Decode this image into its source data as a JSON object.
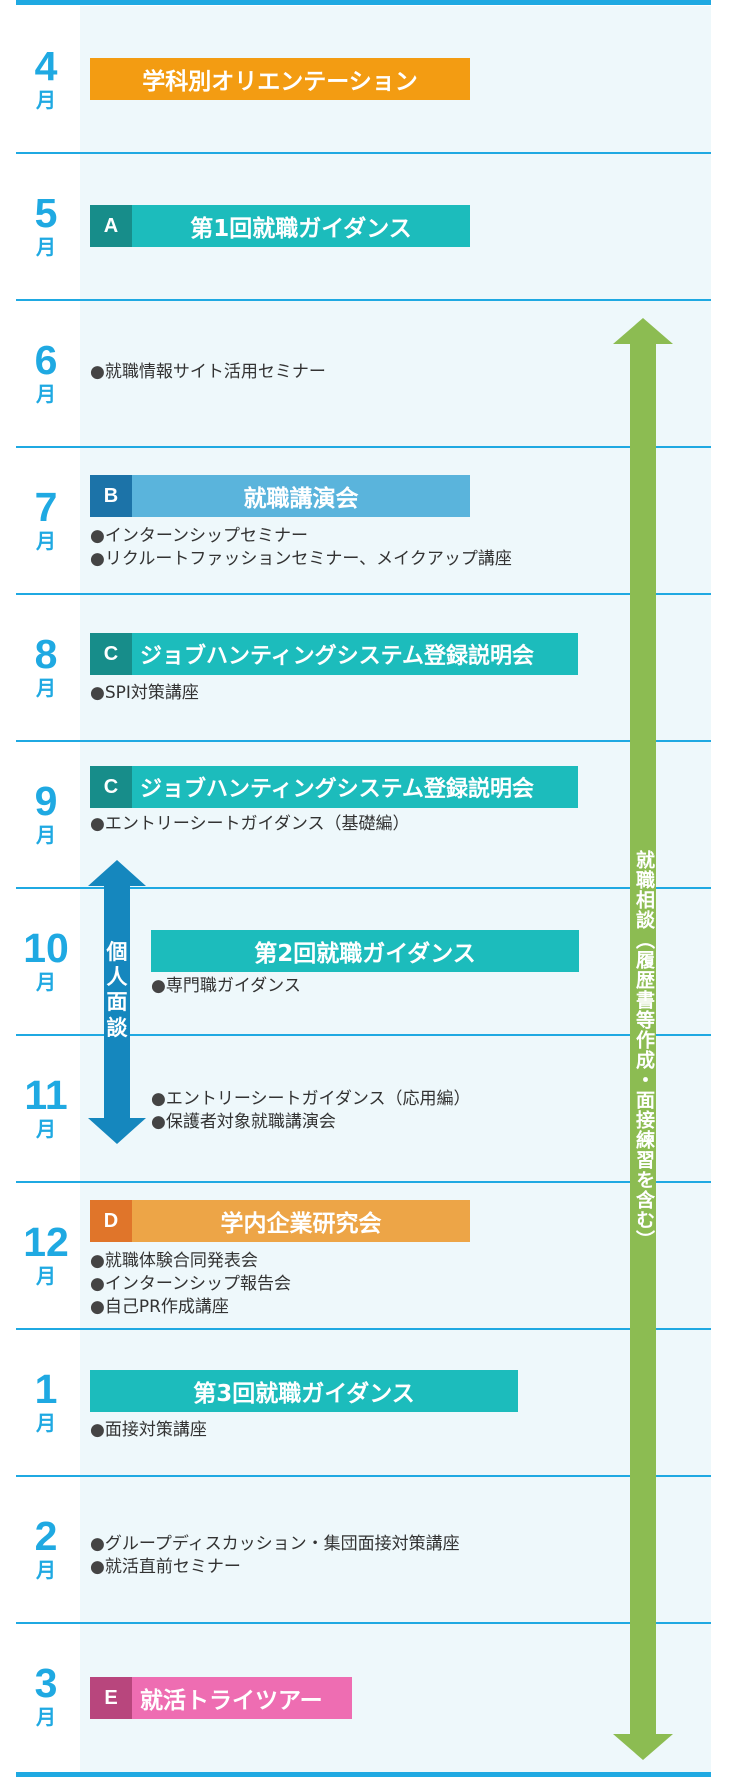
{
  "months": [
    {
      "num": "4",
      "unit": "月"
    },
    {
      "num": "5",
      "unit": "月"
    },
    {
      "num": "6",
      "unit": "月"
    },
    {
      "num": "7",
      "unit": "月"
    },
    {
      "num": "8",
      "unit": "月"
    },
    {
      "num": "9",
      "unit": "月"
    },
    {
      "num": "10",
      "unit": "月"
    },
    {
      "num": "11",
      "unit": "月"
    },
    {
      "num": "12",
      "unit": "月"
    },
    {
      "num": "1",
      "unit": "月"
    },
    {
      "num": "2",
      "unit": "月"
    },
    {
      "num": "3",
      "unit": "月"
    }
  ],
  "bars": {
    "apr": {
      "label": "学科別オリエンテーション"
    },
    "may": {
      "letter": "A",
      "label": "第1回就職ガイダンス"
    },
    "jul": {
      "letter": "B",
      "label": "就職講演会"
    },
    "aug": {
      "letter": "C",
      "label": "ジョブハンティングシステム登録説明会"
    },
    "sep": {
      "letter": "C",
      "label": "ジョブハンティングシステム登録説明会"
    },
    "oct": {
      "label": "第2回就職ガイダンス"
    },
    "dec": {
      "letter": "D",
      "label": "学内企業研究会"
    },
    "jan": {
      "label": "第3回就職ガイダンス"
    },
    "mar": {
      "letter": "E",
      "label": "就活トライツアー"
    }
  },
  "items": {
    "jun": [
      "就職情報サイト活用セミナー"
    ],
    "jul": [
      "インターンシップセミナー",
      "リクルートファッションセミナー、メイクアップ講座"
    ],
    "aug": [
      "SPI対策講座"
    ],
    "sep": [
      "エントリーシートガイダンス（基礎編）"
    ],
    "oct": [
      "専門職ガイダンス"
    ],
    "nov": [
      "エントリーシートガイダンス（応用編）",
      "保護者対象就職講演会"
    ],
    "dec": [
      "就職体験合同発表会",
      "インターンシップ報告会",
      "自己PR作成講座"
    ],
    "jan": [
      "面接対策講座"
    ],
    "feb": [
      "グループディスカッション・集団面接対策講座",
      "就活直前セミナー"
    ]
  },
  "arrows": {
    "interview": {
      "label": "個人面談",
      "chars": [
        "個",
        "人",
        "面",
        "談"
      ]
    },
    "consult": {
      "label": "就職相談（履歴書等作成・面接練習を含む）"
    }
  },
  "colors": {
    "line": "#1fa9e2",
    "orange": "#f39c12",
    "teal": "#1cbcbc",
    "teal_dark": "#178d8a",
    "blue": "#5ab4dc",
    "blue_dark": "#1c73a8",
    "amber": "#eda547",
    "amber_dark": "#e0752a",
    "pink": "#ee6db2",
    "pink_dark": "#b8467d",
    "green": "#8cbc52",
    "arrow_blue": "#1587be"
  }
}
